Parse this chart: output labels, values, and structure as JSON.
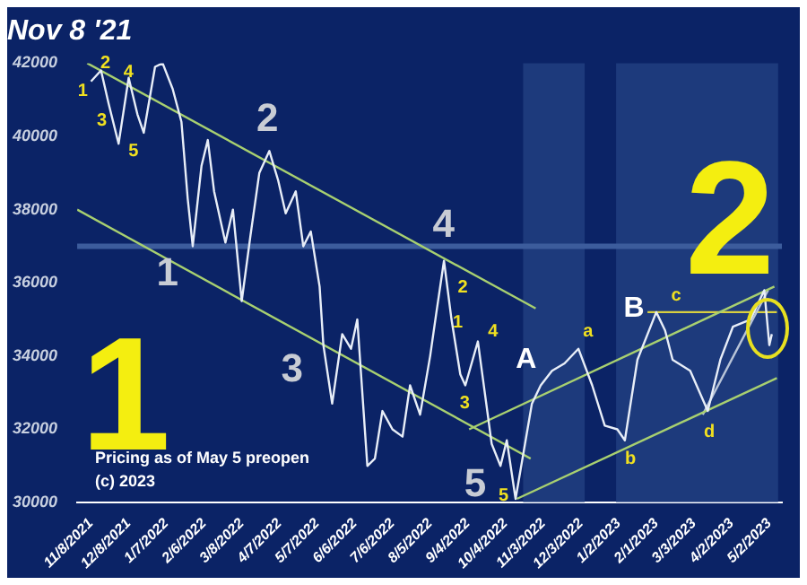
{
  "chart_data": {
    "type": "line",
    "title": "Nov 8 '21",
    "xlim": [
      "2021-10-28",
      "2023-05-12"
    ],
    "xticks": [
      {
        "value": "2021-11-08",
        "label": "11/8/2021"
      },
      {
        "value": "2021-12-08",
        "label": "12/8/2021"
      },
      {
        "value": "2022-01-07",
        "label": "1/7/2022"
      },
      {
        "value": "2022-02-06",
        "label": "2/6/2022"
      },
      {
        "value": "2022-03-08",
        "label": "3/8/2022"
      },
      {
        "value": "2022-04-07",
        "label": "4/7/2022"
      },
      {
        "value": "2022-05-07",
        "label": "5/7/2022"
      },
      {
        "value": "2022-06-06",
        "label": "6/6/2022"
      },
      {
        "value": "2022-07-06",
        "label": "7/6/2022"
      },
      {
        "value": "2022-08-05",
        "label": "8/5/2022"
      },
      {
        "value": "2022-09-04",
        "label": "9/4/2022"
      },
      {
        "value": "2022-10-04",
        "label": "10/4/2022"
      },
      {
        "value": "2022-11-03",
        "label": "11/3/2022"
      },
      {
        "value": "2022-12-03",
        "label": "12/3/2022"
      },
      {
        "value": "2023-01-02",
        "label": "1/2/2023"
      },
      {
        "value": "2023-02-01",
        "label": "2/1/2023"
      },
      {
        "value": "2023-03-03",
        "label": "3/3/2023"
      },
      {
        "value": "2023-04-02",
        "label": "4/2/2023"
      },
      {
        "value": "2023-05-02",
        "label": "5/2/2023"
      }
    ],
    "ylim": [
      30000,
      42000
    ],
    "yticks": [
      30000,
      32000,
      34000,
      36000,
      38000,
      40000,
      42000
    ],
    "grid": false,
    "legend": false,
    "marker": "none",
    "series": [
      {
        "color": "#e8eef8",
        "x": [
          "2021-11-08",
          "2021-11-16",
          "2021-11-22",
          "2021-11-30",
          "2021-12-08",
          "2021-12-15",
          "2021-12-20",
          "2021-12-29",
          "2022-01-04",
          "2022-01-12",
          "2022-01-19",
          "2022-01-24",
          "2022-01-28",
          "2022-02-04",
          "2022-02-09",
          "2022-02-14",
          "2022-02-23",
          "2022-03-01",
          "2022-03-08",
          "2022-03-15",
          "2022-03-22",
          "2022-03-30",
          "2022-04-06",
          "2022-04-12",
          "2022-04-20",
          "2022-04-26",
          "2022-05-02",
          "2022-05-09",
          "2022-05-12",
          "2022-05-19",
          "2022-05-27",
          "2022-06-03",
          "2022-06-08",
          "2022-06-16",
          "2022-06-22",
          "2022-06-28",
          "2022-07-06",
          "2022-07-14",
          "2022-07-20",
          "2022-07-28",
          "2022-08-05",
          "2022-08-10",
          "2022-08-16",
          "2022-08-22",
          "2022-08-29",
          "2022-09-02",
          "2022-09-12",
          "2022-09-23",
          "2022-09-30",
          "2022-10-05",
          "2022-10-12",
          "2022-10-25",
          "2022-11-01",
          "2022-11-10",
          "2022-11-20",
          "2022-12-01",
          "2022-12-12",
          "2022-12-22",
          "2023-01-01",
          "2023-01-07",
          "2023-01-17",
          "2023-02-01",
          "2023-02-08",
          "2023-02-14",
          "2023-02-28",
          "2023-03-14",
          "2023-03-24",
          "2023-04-03",
          "2023-04-17",
          "2023-04-28",
          "2023-05-02",
          "2023-05-04"
        ],
        "values": [
          41500,
          41800,
          40900,
          39800,
          41600,
          40600,
          40100,
          41900,
          42000,
          41300,
          40400,
          38300,
          37000,
          39200,
          39900,
          38500,
          37100,
          38000,
          35500,
          37300,
          39000,
          39600,
          38800,
          37900,
          38500,
          37000,
          37400,
          35900,
          34300,
          32700,
          34600,
          34200,
          35000,
          31000,
          31200,
          32500,
          32000,
          31800,
          33200,
          32400,
          34000,
          35200,
          36600,
          35000,
          33500,
          33200,
          34400,
          31600,
          31000,
          31700,
          30100,
          32700,
          33200,
          33600,
          33800,
          34200,
          33200,
          32100,
          32000,
          31700,
          33900,
          35200,
          34700,
          33900,
          33600,
          32500,
          33900,
          34800,
          35000,
          35800,
          34300,
          34600
        ]
      },
      {
        "type": "line",
        "color": "#a8d070",
        "x": [
          "2021-11-05",
          "2022-10-28"
        ],
        "values": [
          42000,
          35300
        ]
      },
      {
        "type": "line",
        "color": "#a8d070",
        "x": [
          "2021-10-28",
          "2022-10-24"
        ],
        "values": [
          38000,
          31200
        ]
      },
      {
        "type": "line",
        "color": "#a8d070",
        "x": [
          "2022-09-05",
          "2023-05-06"
        ],
        "values": [
          32000,
          35900
        ]
      },
      {
        "type": "line",
        "color": "#a8d070",
        "x": [
          "2022-10-13",
          "2023-05-08"
        ],
        "values": [
          30100,
          33400
        ]
      },
      {
        "type": "line",
        "color": "#b8c4d8",
        "x": [
          "2023-03-10",
          "2023-05-01"
        ],
        "values": [
          32400,
          35800
        ]
      },
      {
        "type": "line",
        "color": "#d8d040",
        "x": [
          "2023-01-25",
          "2023-05-08"
        ],
        "values": [
          35200,
          35200
        ]
      }
    ],
    "ref_lines": [
      {
        "axis": "y",
        "value": 37000,
        "color": "#3c5c9c"
      }
    ],
    "bands": [
      {
        "axis": "x",
        "from": "2022-10-18",
        "to": "2022-12-06",
        "color": "#2a4a8a"
      },
      {
        "axis": "x",
        "from": "2022-12-31",
        "to": "2023-05-09",
        "color": "#2a4a8a"
      }
    ],
    "annotations": [
      "1",
      "2",
      "3",
      "4",
      "5",
      "1",
      "2",
      "3",
      "4",
      "5",
      "1",
      "2",
      "3",
      "4",
      "5",
      "A",
      "a",
      "B",
      "b",
      "c",
      "d",
      "1",
      "2",
      "Pricing as of May 5 preopen",
      "(c) 2023"
    ]
  }
}
